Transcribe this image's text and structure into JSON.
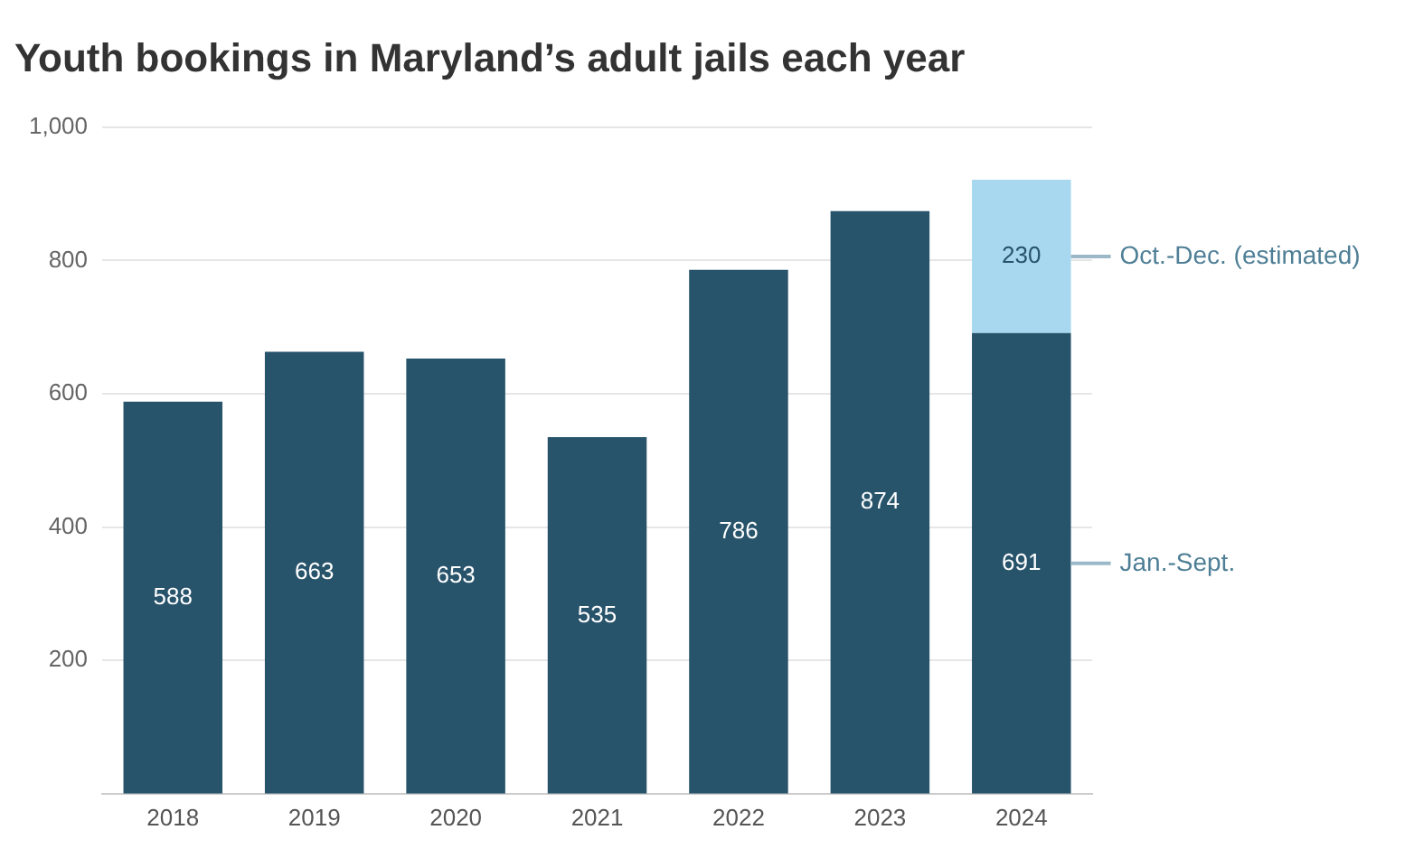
{
  "chart_data": {
    "type": "bar",
    "title": "Youth bookings in Maryland’s adult jails each year",
    "categories": [
      "2018",
      "2019",
      "2020",
      "2021",
      "2022",
      "2023",
      "2024"
    ],
    "series": [
      {
        "name": "Jan.-Sept.",
        "color": "#27536b",
        "values": [
          588,
          663,
          653,
          535,
          786,
          874,
          691
        ]
      },
      {
        "name": "Oct.-Dec. (estimated)",
        "color": "#a8d8f0",
        "values": [
          null,
          null,
          null,
          null,
          null,
          null,
          230
        ]
      }
    ],
    "stacked": true,
    "data_labels": true,
    "ylim": [
      0,
      1000
    ],
    "yticks": [
      200,
      400,
      600,
      800,
      {
        "value": 1000,
        "label": "1,000"
      }
    ],
    "grid": "y",
    "legend": false
  }
}
